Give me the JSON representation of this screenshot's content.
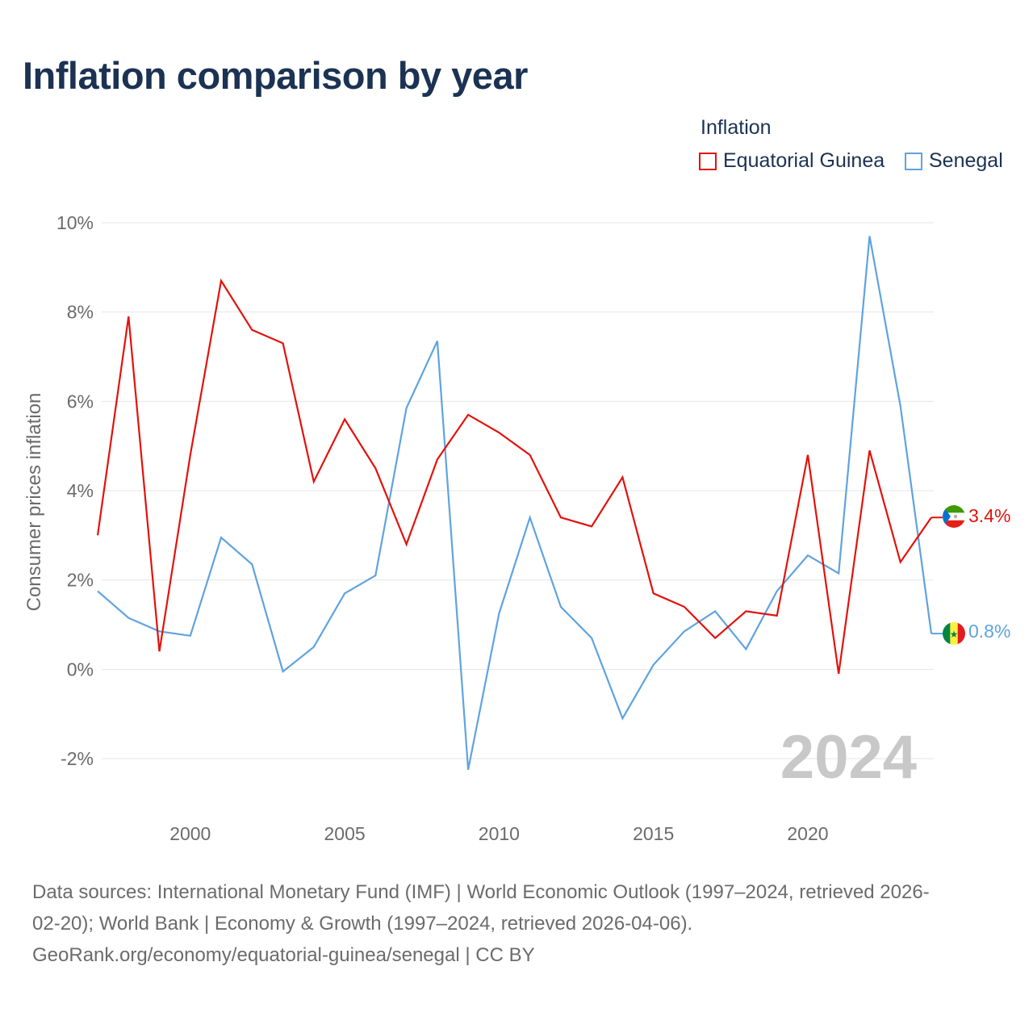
{
  "chart_data": {
    "type": "line",
    "title": "Inflation comparison by year",
    "legend_title": "Inflation",
    "ylabel": "Consumer prices inflation",
    "xlabel": "",
    "xlim": [
      1997,
      2024
    ],
    "ylim": [
      -2.5,
      10.5
    ],
    "x_ticks": [
      2000,
      2005,
      2010,
      2015,
      2020
    ],
    "y_ticks": [
      -2,
      0,
      2,
      4,
      6,
      8,
      10
    ],
    "y_tick_labels": [
      "-2%",
      "0%",
      "2%",
      "4%",
      "6%",
      "8%",
      "10%"
    ],
    "year_label": "2024",
    "x": [
      1997,
      1998,
      1999,
      2000,
      2001,
      2002,
      2003,
      2004,
      2005,
      2006,
      2007,
      2008,
      2009,
      2010,
      2011,
      2012,
      2013,
      2014,
      2015,
      2016,
      2017,
      2018,
      2019,
      2020,
      2021,
      2022,
      2023,
      2024
    ],
    "series": [
      {
        "name": "Equatorial Guinea",
        "color": "#e3120b",
        "end_label": "3.4%",
        "values": [
          3.0,
          7.9,
          0.4,
          4.8,
          8.7,
          7.6,
          7.3,
          4.2,
          5.6,
          4.5,
          2.8,
          4.7,
          5.7,
          5.3,
          4.8,
          3.4,
          3.2,
          4.3,
          1.7,
          1.4,
          0.7,
          1.3,
          1.2,
          4.8,
          -0.1,
          4.9,
          2.4,
          3.4
        ]
      },
      {
        "name": "Senegal",
        "color": "#5fa3e0",
        "end_label": "0.8%",
        "values": [
          1.75,
          1.15,
          0.85,
          0.75,
          2.95,
          2.35,
          -0.05,
          0.5,
          1.7,
          2.1,
          5.85,
          7.35,
          -2.25,
          1.25,
          3.4,
          1.4,
          0.7,
          -1.1,
          0.1,
          0.85,
          1.3,
          0.45,
          1.75,
          2.55,
          2.15,
          9.7,
          5.9,
          0.8
        ]
      }
    ],
    "source_lines": [
      "Data sources: International Monetary Fund (IMF) | World Economic Outlook (1997–2024, retrieved 2026-",
      "02-20); World Bank | Economy & Growth (1997–2024, retrieved 2026-04-06).",
      "GeoRank.org/economy/equatorial-guinea/senegal | CC BY"
    ]
  }
}
